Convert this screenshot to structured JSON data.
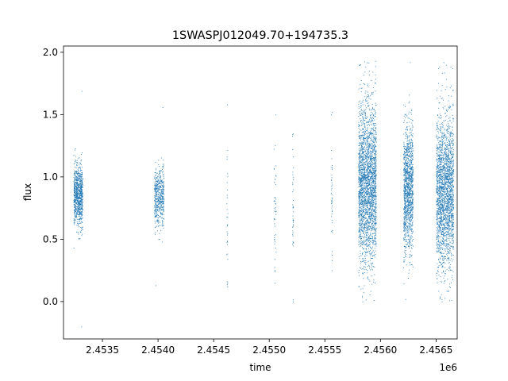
{
  "chart_data": {
    "type": "scatter",
    "title": "1SWASPJ012049.70+194735.3",
    "xlabel": "time",
    "ylabel": "flux",
    "x_offset_label": "1e6",
    "xlim": [
      2453150,
      2456690
    ],
    "ylim": [
      -0.3,
      2.05
    ],
    "x_ticks": [
      2453500,
      2454000,
      2454500,
      2455000,
      2455500,
      2456000,
      2456500
    ],
    "x_tick_labels": [
      "2.4535",
      "2.4540",
      "2.4545",
      "2.4550",
      "2.4555",
      "2.4560",
      "2.4565"
    ],
    "y_ticks": [
      0.0,
      0.5,
      1.0,
      1.5,
      2.0
    ],
    "y_tick_labels": [
      "0.0",
      "0.5",
      "1.0",
      "1.5",
      "2.0"
    ],
    "grid": false,
    "marker_color": "#1f77b4",
    "series": [
      {
        "clusters": [
          {
            "x_range": [
              2453240,
              2453320
            ],
            "center": 0.85,
            "spread": 0.12,
            "y_min": -0.2,
            "y_max": 1.69,
            "n": 900
          },
          {
            "x_range": [
              2453965,
              2454050
            ],
            "center": 0.84,
            "spread": 0.12,
            "y_min": 0.13,
            "y_max": 1.56,
            "n": 520
          },
          {
            "x_range": [
              2454615,
              2454625
            ],
            "center": 0.7,
            "spread": 0.3,
            "y_min": 0.12,
            "y_max": 1.58,
            "n": 30
          },
          {
            "x_range": [
              2455040,
              2455060
            ],
            "center": 0.78,
            "spread": 0.25,
            "y_min": 0.15,
            "y_max": 1.5,
            "n": 45
          },
          {
            "x_range": [
              2455205,
              2455215
            ],
            "center": 0.75,
            "spread": 0.25,
            "y_min": 0.0,
            "y_max": 1.35,
            "n": 40
          },
          {
            "x_range": [
              2455555,
              2455565
            ],
            "center": 0.85,
            "spread": 0.2,
            "y_min": 0.25,
            "y_max": 1.52,
            "n": 40
          },
          {
            "x_range": [
              2455800,
              2455960
            ],
            "center": 0.95,
            "spread": 0.32,
            "y_min": 0.0,
            "y_max": 1.93,
            "n": 2600
          },
          {
            "x_range": [
              2456205,
              2456290
            ],
            "center": 0.9,
            "spread": 0.25,
            "y_min": 0.02,
            "y_max": 1.92,
            "n": 1300
          },
          {
            "x_range": [
              2456500,
              2456655
            ],
            "center": 0.88,
            "spread": 0.3,
            "y_min": 0.0,
            "y_max": 1.92,
            "n": 2300
          }
        ]
      }
    ]
  }
}
